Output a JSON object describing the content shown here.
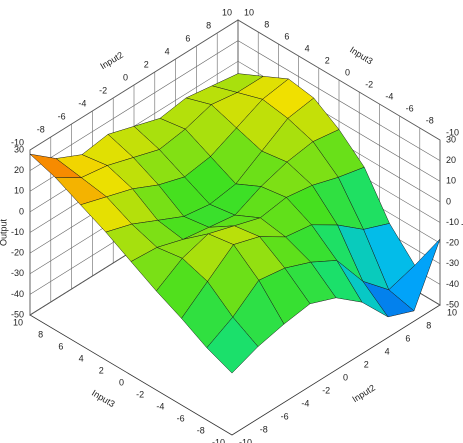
{
  "chart_data": {
    "type": "surface",
    "x_label": "Input3",
    "y_label": "Input2",
    "z_label": "Output",
    "x": [
      -10,
      -7.5,
      -5,
      -2.5,
      0,
      2.5,
      5,
      7.5,
      10
    ],
    "y": [
      -10,
      -7.5,
      -5,
      -2.5,
      0,
      2.5,
      5,
      7.5,
      10
    ],
    "z": [
      [
        -20,
        -15,
        -8,
        -2,
        5,
        12,
        18,
        24,
        28
      ],
      [
        -15,
        -8,
        2,
        6,
        4,
        8,
        14,
        16,
        18
      ],
      [
        -12,
        2,
        12,
        10,
        0,
        2,
        10,
        14,
        12
      ],
      [
        -10,
        0,
        8,
        6,
        -2,
        -4,
        4,
        10,
        14
      ],
      [
        -15,
        -5,
        0,
        2,
        -4,
        -6,
        0,
        6,
        10
      ],
      [
        -25,
        -12,
        -2,
        4,
        2,
        -4,
        2,
        8,
        6
      ],
      [
        -40,
        -30,
        -10,
        2,
        6,
        4,
        8,
        12,
        8
      ],
      [
        -45,
        -42,
        -20,
        -2,
        8,
        12,
        14,
        10,
        6
      ],
      [
        -18,
        -38,
        -25,
        -5,
        6,
        14,
        16,
        10,
        4
      ]
    ],
    "xlim": [
      -10,
      10
    ],
    "ylim": [
      -10,
      10
    ],
    "zlim": [
      -50,
      30
    ],
    "xticks": [
      -10,
      -8,
      -6,
      -4,
      -2,
      0,
      2,
      4,
      6,
      8,
      10
    ],
    "yticks": [
      -10,
      -8,
      -6,
      -4,
      -2,
      0,
      2,
      4,
      6,
      8,
      10
    ],
    "zticks": [
      -50,
      -40,
      -30,
      -20,
      -10,
      0,
      10,
      20,
      30
    ],
    "colormap": [
      "#0a1ac8",
      "#00b4ff",
      "#10e080",
      "#40e020",
      "#f0e000",
      "#ff2a00"
    ],
    "grid": true
  }
}
